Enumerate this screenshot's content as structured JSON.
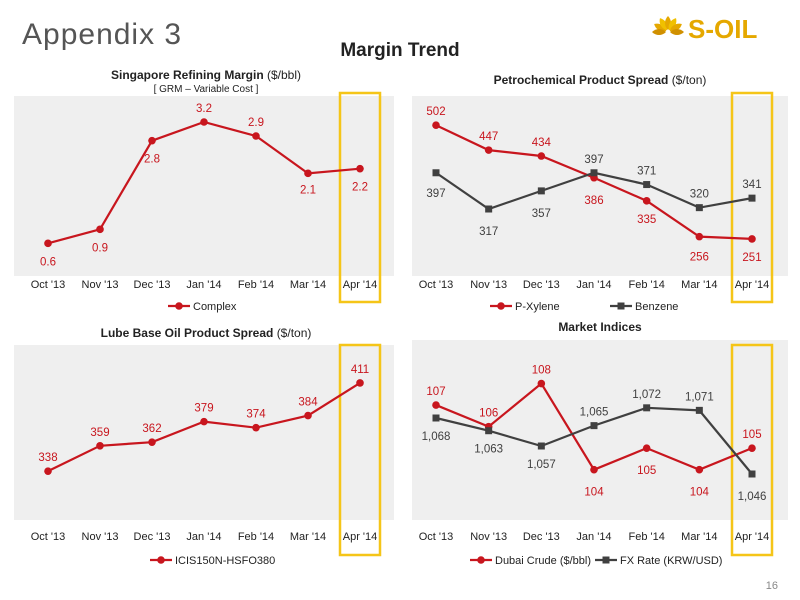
{
  "page": {
    "title": "Appendix 3",
    "subtitle": "Margin Trend",
    "page_number": "16",
    "logo_text": "S-OIL"
  },
  "colors": {
    "red": "#c8161e",
    "dark": "#404040",
    "highlight": "#f5c518",
    "panel": "#efefef"
  },
  "chart_data": [
    {
      "type": "line",
      "title": "Singapore Refining Margin",
      "title_unit": "($/bbl)",
      "subtitle": "[ GRM – Variable Cost ]",
      "categories": [
        "Oct '13",
        "Nov '13",
        "Dec '13",
        "Jan '14",
        "Feb '14",
        "Mar '14",
        "Apr '14"
      ],
      "series": [
        {
          "name": "Complex",
          "values": [
            0.6,
            0.9,
            2.8,
            3.2,
            2.9,
            2.1,
            2.2
          ],
          "labels": [
            "0.6",
            "0.9",
            "2.8",
            "3.2",
            "2.9",
            "2.1",
            "2.2"
          ],
          "color": "#c8161e",
          "marker": "circle"
        }
      ],
      "ylim": [
        0.2,
        3.5
      ],
      "highlight_category": "Apr '14",
      "legend_position": "bottom"
    },
    {
      "type": "line",
      "title": "Petrochemical Product Spread",
      "title_unit": "($/ton)",
      "categories": [
        "Oct '13",
        "Nov '13",
        "Dec '13",
        "Jan '14",
        "Feb '14",
        "Mar '14",
        "Apr '14"
      ],
      "series": [
        {
          "name": "P-Xylene",
          "values": [
            502,
            447,
            434,
            386,
            335,
            256,
            251
          ],
          "labels": [
            "502",
            "447",
            "434",
            "386",
            "335",
            "256",
            "251"
          ],
          "color": "#c8161e",
          "marker": "circle"
        },
        {
          "name": "Benzene",
          "values": [
            397,
            317,
            357,
            397,
            371,
            320,
            341
          ],
          "labels": [
            "397",
            "317",
            "357",
            "397",
            "371",
            "320",
            "341"
          ],
          "color": "#404040",
          "marker": "square"
        }
      ],
      "ylim": [
        200,
        540
      ],
      "highlight_category": "Apr '14",
      "legend_position": "bottom"
    },
    {
      "type": "line",
      "title": "Lube Base Oil Product Spread",
      "title_unit": "($/ton)",
      "categories": [
        "Oct '13",
        "Nov '13",
        "Dec '13",
        "Jan '14",
        "Feb '14",
        "Mar '14",
        "Apr '14"
      ],
      "series": [
        {
          "name": "ICIS150N-HSFO380",
          "values": [
            338,
            359,
            362,
            379,
            374,
            384,
            411
          ],
          "labels": [
            "338",
            "359",
            "362",
            "379",
            "374",
            "384",
            "411"
          ],
          "color": "#c8161e",
          "marker": "circle"
        }
      ],
      "ylim": [
        310,
        430
      ],
      "highlight_category": "Apr '14",
      "legend_position": "bottom"
    },
    {
      "type": "line",
      "title": "Market Indices",
      "title_unit": "",
      "categories": [
        "Oct '13",
        "Nov '13",
        "Dec '13",
        "Jan '14",
        "Feb '14",
        "Mar '14",
        "Apr '14"
      ],
      "series": [
        {
          "name": "Dubai Crude ($/bbl)",
          "values": [
            107,
            106,
            108,
            104,
            105,
            104,
            105
          ],
          "labels": [
            "107",
            "106",
            "108",
            "104",
            "105",
            "104",
            "105"
          ],
          "color": "#c8161e",
          "marker": "circle",
          "ylim": [
            102.5,
            109
          ]
        },
        {
          "name": "FX Rate (KRW/USD)",
          "values": [
            1068,
            1063,
            1057,
            1065,
            1072,
            1071,
            1046
          ],
          "labels": [
            "1,068",
            "1,063",
            "1,057",
            "1,065",
            "1,072",
            "1,071",
            "1,046"
          ],
          "color": "#404040",
          "marker": "square",
          "ylim": [
            1035,
            1090
          ]
        }
      ],
      "highlight_category": "Apr '14",
      "legend_position": "bottom"
    }
  ]
}
